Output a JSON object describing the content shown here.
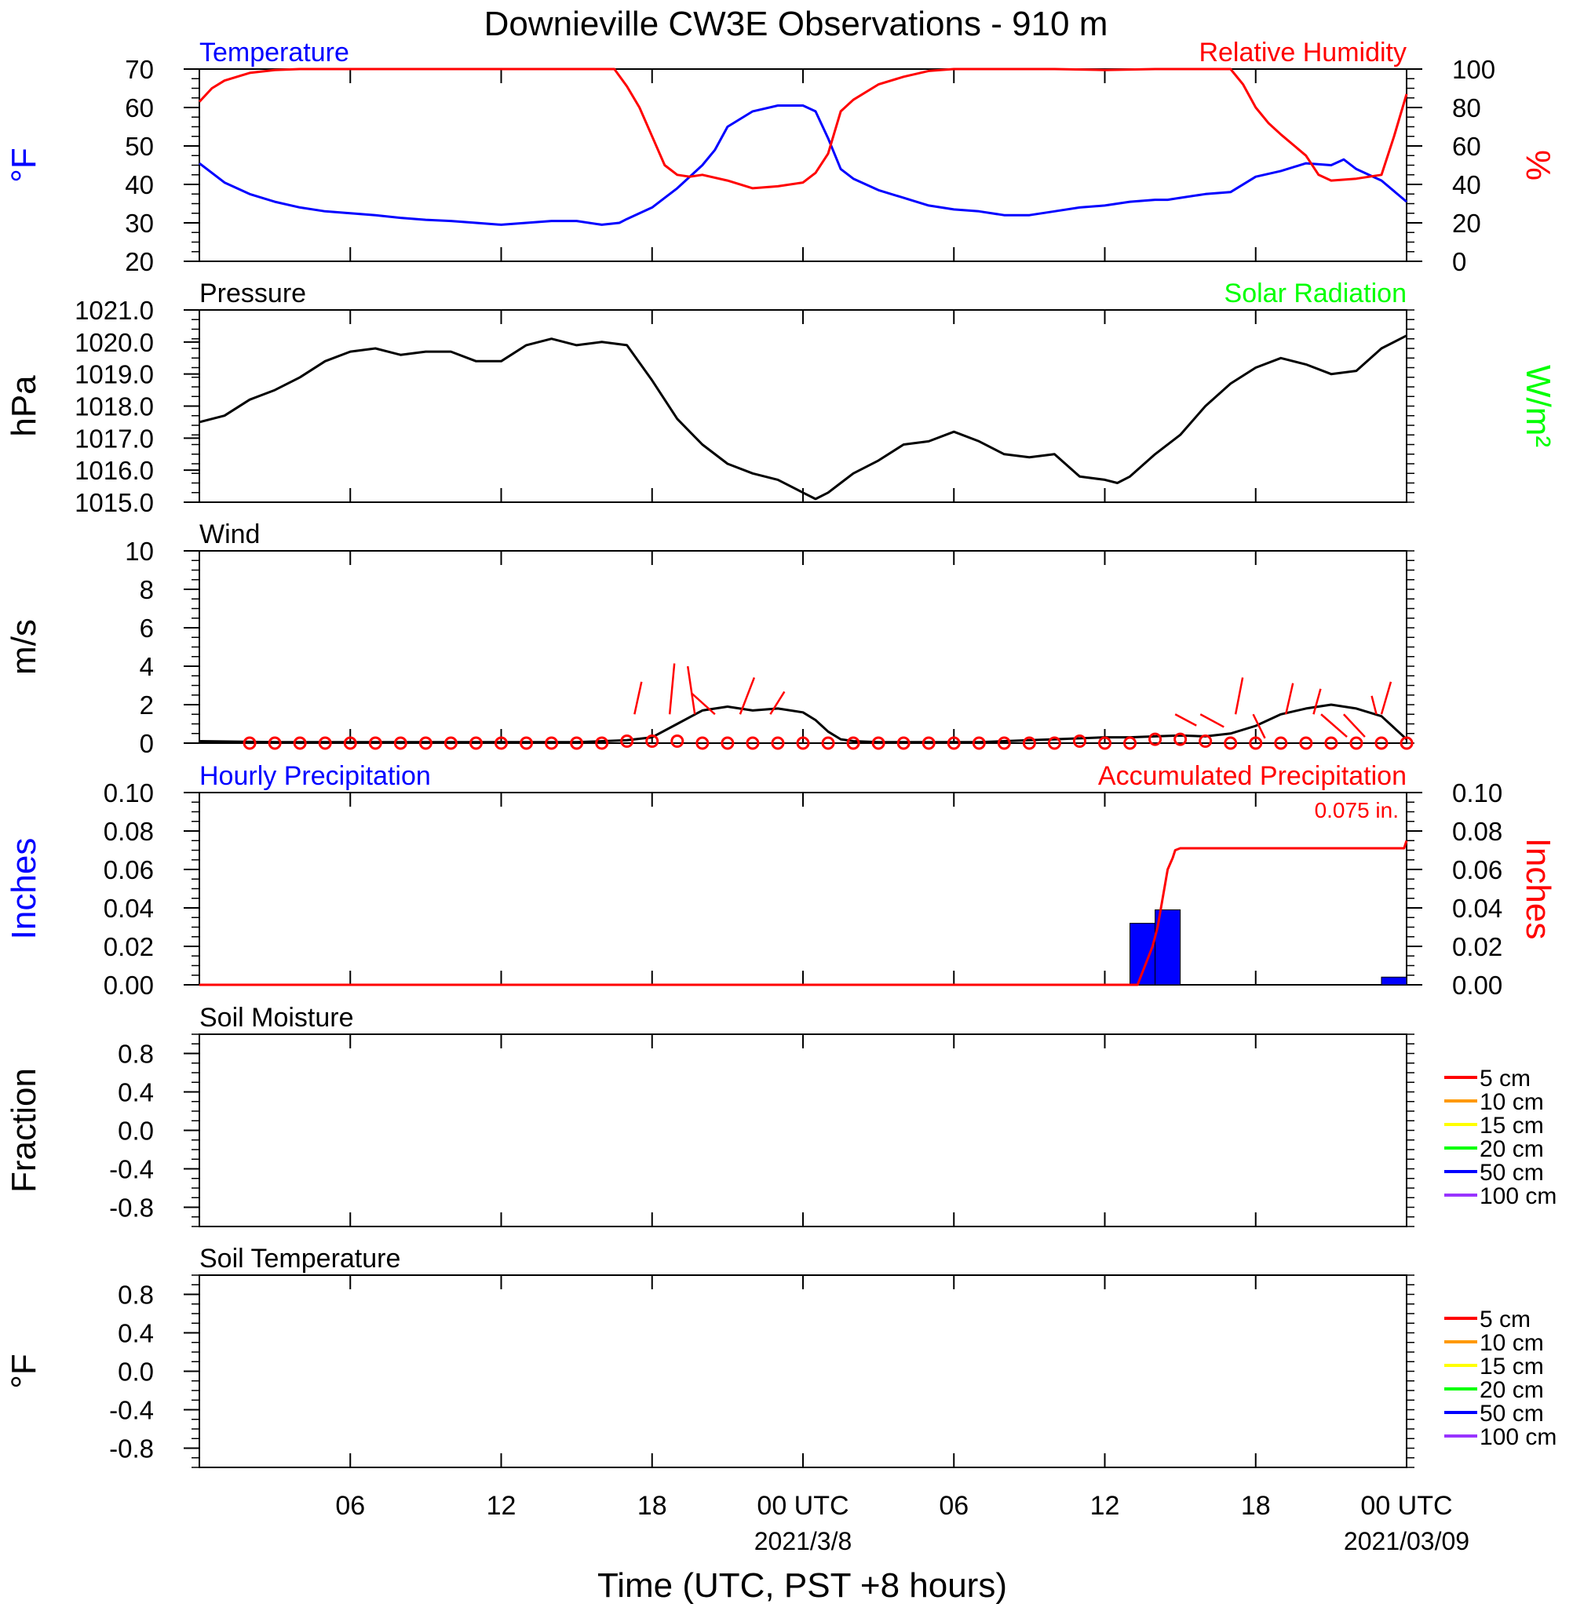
{
  "title": "Downieville CW3E Observations - 910 m",
  "x_axis": {
    "label": "Time (UTC, PST +8 hours)",
    "range_hours": [
      -24,
      24
    ],
    "tick_labels": [
      {
        "hour": -18,
        "text": "06"
      },
      {
        "hour": -12,
        "text": "12"
      },
      {
        "hour": -6,
        "text": "18"
      },
      {
        "hour": 0,
        "text": "00 UTC",
        "sub": "2021/3/8"
      },
      {
        "hour": 6,
        "text": "06"
      },
      {
        "hour": 12,
        "text": "12"
      },
      {
        "hour": 18,
        "text": "18"
      },
      {
        "hour": 24,
        "text": "00 UTC",
        "sub": "2021/03/09"
      }
    ]
  },
  "colors": {
    "temperature": "#0000ff",
    "humidity": "#ff0000",
    "pressure": "#000000",
    "solar": "#00ff00",
    "wind": "#000000",
    "wind_barb": "#ff0000",
    "hourly_precip": "#0000ff",
    "accum_precip": "#ff0000"
  },
  "chart_data": [
    {
      "id": "temp_rh",
      "type": "line",
      "title_left": "Temperature",
      "title_right": "Relative Humidity",
      "ylabel_left": "°F",
      "ylabel_right": "%",
      "ylim_left": [
        20,
        70
      ],
      "ylim_right": [
        0,
        100
      ],
      "yticks_left": [
        "20",
        "30",
        "40",
        "50",
        "60",
        "70"
      ],
      "yticks_right": [
        "0",
        "20",
        "40",
        "60",
        "80",
        "100"
      ],
      "series": [
        {
          "name": "Temperature",
          "axis": "left",
          "color": "#0000ff",
          "x": [
            -24,
            -23,
            -22,
            -21,
            -20,
            -19,
            -18,
            -17,
            -16,
            -15,
            -14,
            -13,
            -12,
            -11,
            -10,
            -9,
            -8,
            -7.3,
            -7,
            -6,
            -5,
            -4,
            -3.5,
            -3,
            -2,
            -1,
            0,
            0.5,
            1,
            1.5,
            2,
            3,
            4,
            5,
            6,
            7,
            8,
            9,
            10,
            11,
            12,
            13,
            14,
            14.5,
            15,
            16,
            17,
            18,
            19,
            20,
            21,
            21.5,
            22,
            23,
            24
          ],
          "y": [
            45.5,
            40.5,
            37.5,
            35.5,
            34,
            33,
            32.5,
            32,
            31.3,
            30.8,
            30.5,
            30,
            29.5,
            30,
            30.5,
            30.5,
            29.5,
            30,
            31,
            34,
            39,
            45,
            49,
            55,
            59,
            60.5,
            60.5,
            59,
            52,
            44,
            41.5,
            38.5,
            36.5,
            34.5,
            33.5,
            33,
            32,
            32,
            33,
            34,
            34.5,
            35.5,
            36,
            36,
            36.5,
            37.5,
            38,
            42,
            43.5,
            45.5,
            45,
            46.5,
            44,
            41,
            35.5
          ]
        },
        {
          "name": "Relative Humidity",
          "axis": "right",
          "color": "#ff0000",
          "x": [
            -24,
            -23.5,
            -23,
            -22,
            -21,
            -20,
            -18,
            -15,
            -12,
            -9,
            -7.5,
            -7,
            -6.5,
            -6,
            -5.5,
            -5,
            -4.5,
            -4,
            -3,
            -2,
            -1,
            0,
            0.5,
            1,
            1.5,
            2,
            3,
            4,
            5,
            6,
            8,
            10,
            12,
            14,
            16,
            17,
            17.5,
            18,
            18.5,
            19,
            20,
            20.5,
            21,
            22,
            23,
            23.5,
            24
          ],
          "y": [
            83,
            90,
            94,
            98,
            99.5,
            100,
            100,
            100,
            100,
            100,
            100,
            91,
            80,
            65,
            50,
            45,
            44,
            45,
            42,
            38,
            39,
            41,
            46,
            56,
            78,
            84,
            92,
            96,
            99,
            100,
            100,
            100,
            99.5,
            100,
            100,
            100,
            92,
            80,
            72,
            66,
            55,
            45,
            42,
            43,
            45,
            65,
            87
          ]
        }
      ]
    },
    {
      "id": "pressure",
      "type": "line",
      "title_left": "Pressure",
      "title_right": "Solar Radiation",
      "ylabel_left": "hPa",
      "ylabel_right": "W/m²",
      "ylim_left": [
        1015.0,
        1021.0
      ],
      "yticks_left": [
        "1015.0",
        "1016.0",
        "1017.0",
        "1018.0",
        "1019.0",
        "1020.0",
        "1021.0"
      ],
      "series": [
        {
          "name": "Pressure",
          "axis": "left",
          "color": "#000000",
          "x": [
            -24,
            -23,
            -22,
            -21,
            -20,
            -19,
            -18,
            -17,
            -16,
            -15,
            -14,
            -13,
            -12,
            -11,
            -10,
            -9,
            -8,
            -7,
            -6,
            -5,
            -4,
            -3,
            -2,
            -1,
            0,
            0.5,
            1,
            1.5,
            2,
            3,
            4,
            5,
            6,
            7,
            8,
            9,
            10,
            11,
            12,
            12.5,
            13,
            14,
            15,
            16,
            17,
            18,
            19,
            20,
            21,
            22,
            23,
            24
          ],
          "y": [
            1017.5,
            1017.7,
            1018.2,
            1018.5,
            1018.9,
            1019.4,
            1019.7,
            1019.8,
            1019.6,
            1019.7,
            1019.7,
            1019.4,
            1019.4,
            1019.9,
            1020.1,
            1019.9,
            1020.0,
            1019.9,
            1018.8,
            1017.6,
            1016.8,
            1016.2,
            1015.9,
            1015.7,
            1015.3,
            1015.1,
            1015.3,
            1015.6,
            1015.9,
            1016.3,
            1016.8,
            1016.9,
            1017.2,
            1016.9,
            1016.5,
            1016.4,
            1016.5,
            1015.8,
            1015.7,
            1015.6,
            1015.8,
            1016.5,
            1017.1,
            1018.0,
            1018.7,
            1019.2,
            1019.5,
            1019.3,
            1019.0,
            1019.1,
            1019.8,
            1020.2
          ]
        }
      ]
    },
    {
      "id": "wind",
      "type": "line",
      "title_left": "Wind",
      "ylabel_left": "m/s",
      "ylim_left": [
        0,
        10
      ],
      "yticks_left": [
        "0",
        "2",
        "4",
        "6",
        "8",
        "10"
      ],
      "series": [
        {
          "name": "Wind speed",
          "axis": "left",
          "color": "#000000",
          "x": [
            -24,
            -21,
            -18,
            -15,
            -12,
            -9,
            -7,
            -6,
            -5,
            -4,
            -3,
            -2,
            -1,
            0,
            0.5,
            1,
            1.5,
            2,
            3,
            4,
            5,
            6,
            7,
            8,
            9,
            10,
            11,
            12,
            13,
            14,
            15,
            16,
            17,
            18,
            19,
            20,
            21,
            22,
            23,
            23.5,
            24
          ],
          "y": [
            0.1,
            0.05,
            0.05,
            0.05,
            0.05,
            0.05,
            0.15,
            0.3,
            1.0,
            1.7,
            1.9,
            1.7,
            1.8,
            1.6,
            1.2,
            0.6,
            0.2,
            0.1,
            0.05,
            0.05,
            0.05,
            0.05,
            0.05,
            0.1,
            0.15,
            0.2,
            0.25,
            0.3,
            0.3,
            0.35,
            0.4,
            0.35,
            0.5,
            0.9,
            1.5,
            1.8,
            2.0,
            1.8,
            1.4,
            0.8,
            0.2
          ]
        }
      ],
      "barbs": {
        "x": [
          -22,
          -21,
          -20,
          -19,
          -18,
          -17,
          -16,
          -15,
          -14,
          -13,
          -12,
          -11,
          -10,
          -9,
          -8,
          -7,
          -6,
          -5,
          -4,
          -3,
          -2,
          -1,
          0,
          1,
          2,
          3,
          4,
          5,
          6,
          7,
          8,
          9,
          10,
          11,
          12,
          13,
          14,
          15,
          16,
          17,
          18,
          19,
          20,
          21,
          22,
          23,
          24
        ],
        "speed": [
          0,
          0,
          0,
          0,
          0,
          0,
          0,
          0,
          0,
          0,
          0,
          0,
          0,
          0,
          0,
          0.1,
          0.1,
          0.1,
          0,
          0,
          0,
          0,
          0,
          0,
          0,
          0,
          0,
          0,
          0,
          0,
          0,
          0,
          0,
          0.1,
          0,
          0,
          0.2,
          0.2,
          0.1,
          0,
          0,
          0,
          0,
          0,
          0,
          0,
          0
        ],
        "sticks": [
          {
            "x": -6.7,
            "dx": 0.3,
            "dy": 2.3
          },
          {
            "x": -5.3,
            "dx": 0.2,
            "dy": 3.6
          },
          {
            "x": -4.3,
            "dx": -0.3,
            "dy": 3.4
          },
          {
            "x": -3.5,
            "dx": -1.0,
            "dy": 1.5
          },
          {
            "x": -2.5,
            "dx": 0.6,
            "dy": 2.6
          },
          {
            "x": -1.3,
            "dx": 0.6,
            "dy": 1.6
          },
          {
            "x": 14.8,
            "dx": 0.9,
            "dy": -0.8
          },
          {
            "x": 15.8,
            "dx": 1.0,
            "dy": -0.9
          },
          {
            "x": 17.2,
            "dx": 0.3,
            "dy": 2.6
          },
          {
            "x": 17.9,
            "dx": 0.5,
            "dy": -1.7
          },
          {
            "x": 19.2,
            "dx": 0.3,
            "dy": 2.2
          },
          {
            "x": 20.3,
            "dx": 0.3,
            "dy": 1.8
          },
          {
            "x": 20.6,
            "dx": 1.1,
            "dy": -1.6
          },
          {
            "x": 21.5,
            "dx": 0.9,
            "dy": -1.6
          },
          {
            "x": 22.8,
            "dx": -0.2,
            "dy": 1.3
          },
          {
            "x": 23.0,
            "dx": 0.4,
            "dy": 2.3
          }
        ]
      }
    },
    {
      "id": "precip",
      "type": "bar",
      "title_left": "Hourly Precipitation",
      "title_right": "Accumulated Precipitation",
      "annotation": "0.075 in.",
      "ylabel_left": "Inches",
      "ylabel_right": "Inches",
      "ylim_left": [
        0,
        0.1
      ],
      "ylim_right": [
        0,
        0.1
      ],
      "yticks_left": [
        "0.00",
        "0.02",
        "0.04",
        "0.06",
        "0.08",
        "0.10"
      ],
      "yticks_right": [
        "0.00",
        "0.02",
        "0.04",
        "0.06",
        "0.08",
        "0.10"
      ],
      "bars": [
        {
          "x0": 13,
          "x1": 14,
          "value": 0.032
        },
        {
          "x0": 14,
          "x1": 15,
          "value": 0.039
        },
        {
          "x0": 23,
          "x1": 24,
          "value": 0.004
        }
      ],
      "series": [
        {
          "name": "Accumulated Precipitation",
          "axis": "right",
          "color": "#ff0000",
          "x": [
            -24,
            13.3,
            13.6,
            13.9,
            14.1,
            14.3,
            14.5,
            14.7,
            14.8,
            15.0,
            23.9,
            24
          ],
          "y": [
            0,
            0,
            0.01,
            0.02,
            0.03,
            0.045,
            0.06,
            0.066,
            0.07,
            0.071,
            0.071,
            0.075
          ]
        }
      ]
    },
    {
      "id": "soil_moisture",
      "type": "line",
      "title_left": "Soil Moisture",
      "ylabel_left": "Fraction",
      "ylim_left": [
        -1,
        1
      ],
      "yticks_left": [
        "-0.8",
        "-0.4",
        "0.0",
        "0.4",
        "0.8"
      ],
      "legend": [
        {
          "label": "5 cm",
          "color": "#ff0000"
        },
        {
          "label": "10 cm",
          "color": "#ff9900"
        },
        {
          "label": "15 cm",
          "color": "#ffff00"
        },
        {
          "label": "20 cm",
          "color": "#00ff00"
        },
        {
          "label": "50 cm",
          "color": "#0000ff"
        },
        {
          "label": "100 cm",
          "color": "#9933ff"
        }
      ],
      "series": []
    },
    {
      "id": "soil_temperature",
      "type": "line",
      "title_left": "Soil Temperature",
      "ylabel_left": "°F",
      "ylim_left": [
        -1,
        1
      ],
      "yticks_left": [
        "-0.8",
        "-0.4",
        "0.0",
        "0.4",
        "0.8"
      ],
      "legend": [
        {
          "label": "5 cm",
          "color": "#ff0000"
        },
        {
          "label": "10 cm",
          "color": "#ff9900"
        },
        {
          "label": "15 cm",
          "color": "#ffff00"
        },
        {
          "label": "20 cm",
          "color": "#00ff00"
        },
        {
          "label": "50 cm",
          "color": "#0000ff"
        },
        {
          "label": "100 cm",
          "color": "#9933ff"
        }
      ],
      "series": []
    }
  ]
}
